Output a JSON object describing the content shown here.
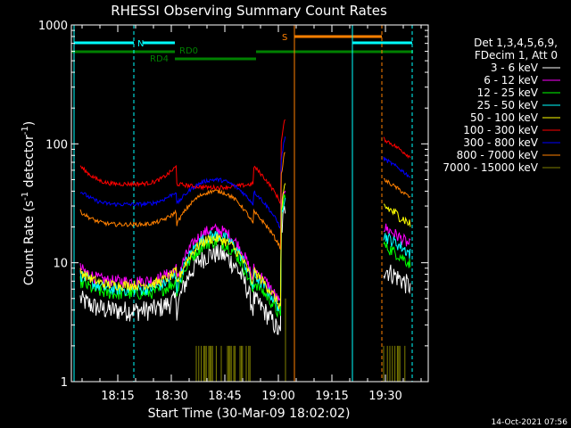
{
  "chart_data": {
    "type": "line",
    "title": "RHESSI Observing Summary Count Rates",
    "xlabel": "Start Time (30-Mar-09 18:02:02)",
    "ylabel_main": "Count Rate (s",
    "ylabel_sup": "-1",
    "ylabel_tail": " detector",
    "ylabel_sup2": "-1",
    "ylabel_close": ")",
    "yscale": "log",
    "ylim": [
      1,
      1000
    ],
    "xlim_minutes": [
      2,
      102
    ],
    "x_ticks": [
      {
        "label": "18:15",
        "min": 15
      },
      {
        "label": "18:30",
        "min": 30
      },
      {
        "label": "18:45",
        "min": 45
      },
      {
        "label": "19:00",
        "min": 60
      },
      {
        "label": "19:15",
        "min": 75
      },
      {
        "label": "19:30",
        "min": 90
      }
    ],
    "y_ticks": [
      {
        "label": "1",
        "v": 1
      },
      {
        "label": "10",
        "v": 10
      },
      {
        "label": "100",
        "v": 100
      },
      {
        "label": "1000",
        "v": 1000
      }
    ],
    "legend": {
      "placement": "right",
      "header": [
        "Det 1,3,4,5,6,9,",
        "FDecim 1, Att 0"
      ]
    },
    "series": [
      {
        "name": "3 - 6 keV",
        "color": "#ffffff",
        "base": 5,
        "peak": 12,
        "min": 4,
        "noise": 0.2,
        "flare": 30,
        "post": 9
      },
      {
        "name": "6 - 12 keV",
        "color": "#ff00ff",
        "base": 9,
        "peak": 19,
        "min": 7,
        "noise": 0.12,
        "flare": 45,
        "post": 20
      },
      {
        "name": "12 - 25 keV",
        "color": "#00ff00",
        "base": 7,
        "peak": 15,
        "min": 5.5,
        "noise": 0.12,
        "flare": 40,
        "post": 14
      },
      {
        "name": "25 - 50 keV",
        "color": "#00ffff",
        "base": 8,
        "peak": 17,
        "min": 6,
        "noise": 0.12,
        "flare": 40,
        "post": 17
      },
      {
        "name": "50 - 100 keV",
        "color": "#ffff00",
        "base": 8.5,
        "peak": 16,
        "min": 6.5,
        "noise": 0.1,
        "flare": 45,
        "post": 30
      },
      {
        "name": "100 - 300 keV",
        "color": "#ff0000",
        "base": 65,
        "peak": 43,
        "min": 46,
        "noise": 0.04,
        "flare": 170,
        "post": 110
      },
      {
        "name": "300 - 800 keV",
        "color": "#0000ff",
        "base": 40,
        "peak": 50,
        "min": 31,
        "noise": 0.04,
        "flare": 120,
        "post": 75
      },
      {
        "name": "800 - 7000 keV",
        "color": "#ff8000",
        "base": 27,
        "peak": 40,
        "min": 21,
        "noise": 0.04,
        "flare": 90,
        "post": 50
      },
      {
        "name": "7000 - 15000 keV",
        "color": "#808000",
        "base": 1,
        "peak": 2,
        "min": 1,
        "noise": 0,
        "flare": 1,
        "post": 1
      }
    ],
    "annotations": {
      "N": "N",
      "S": "S",
      "RD0": "RD0",
      "RD4": "RD4"
    },
    "timestamp": "14-Oct-2021 07:56"
  }
}
